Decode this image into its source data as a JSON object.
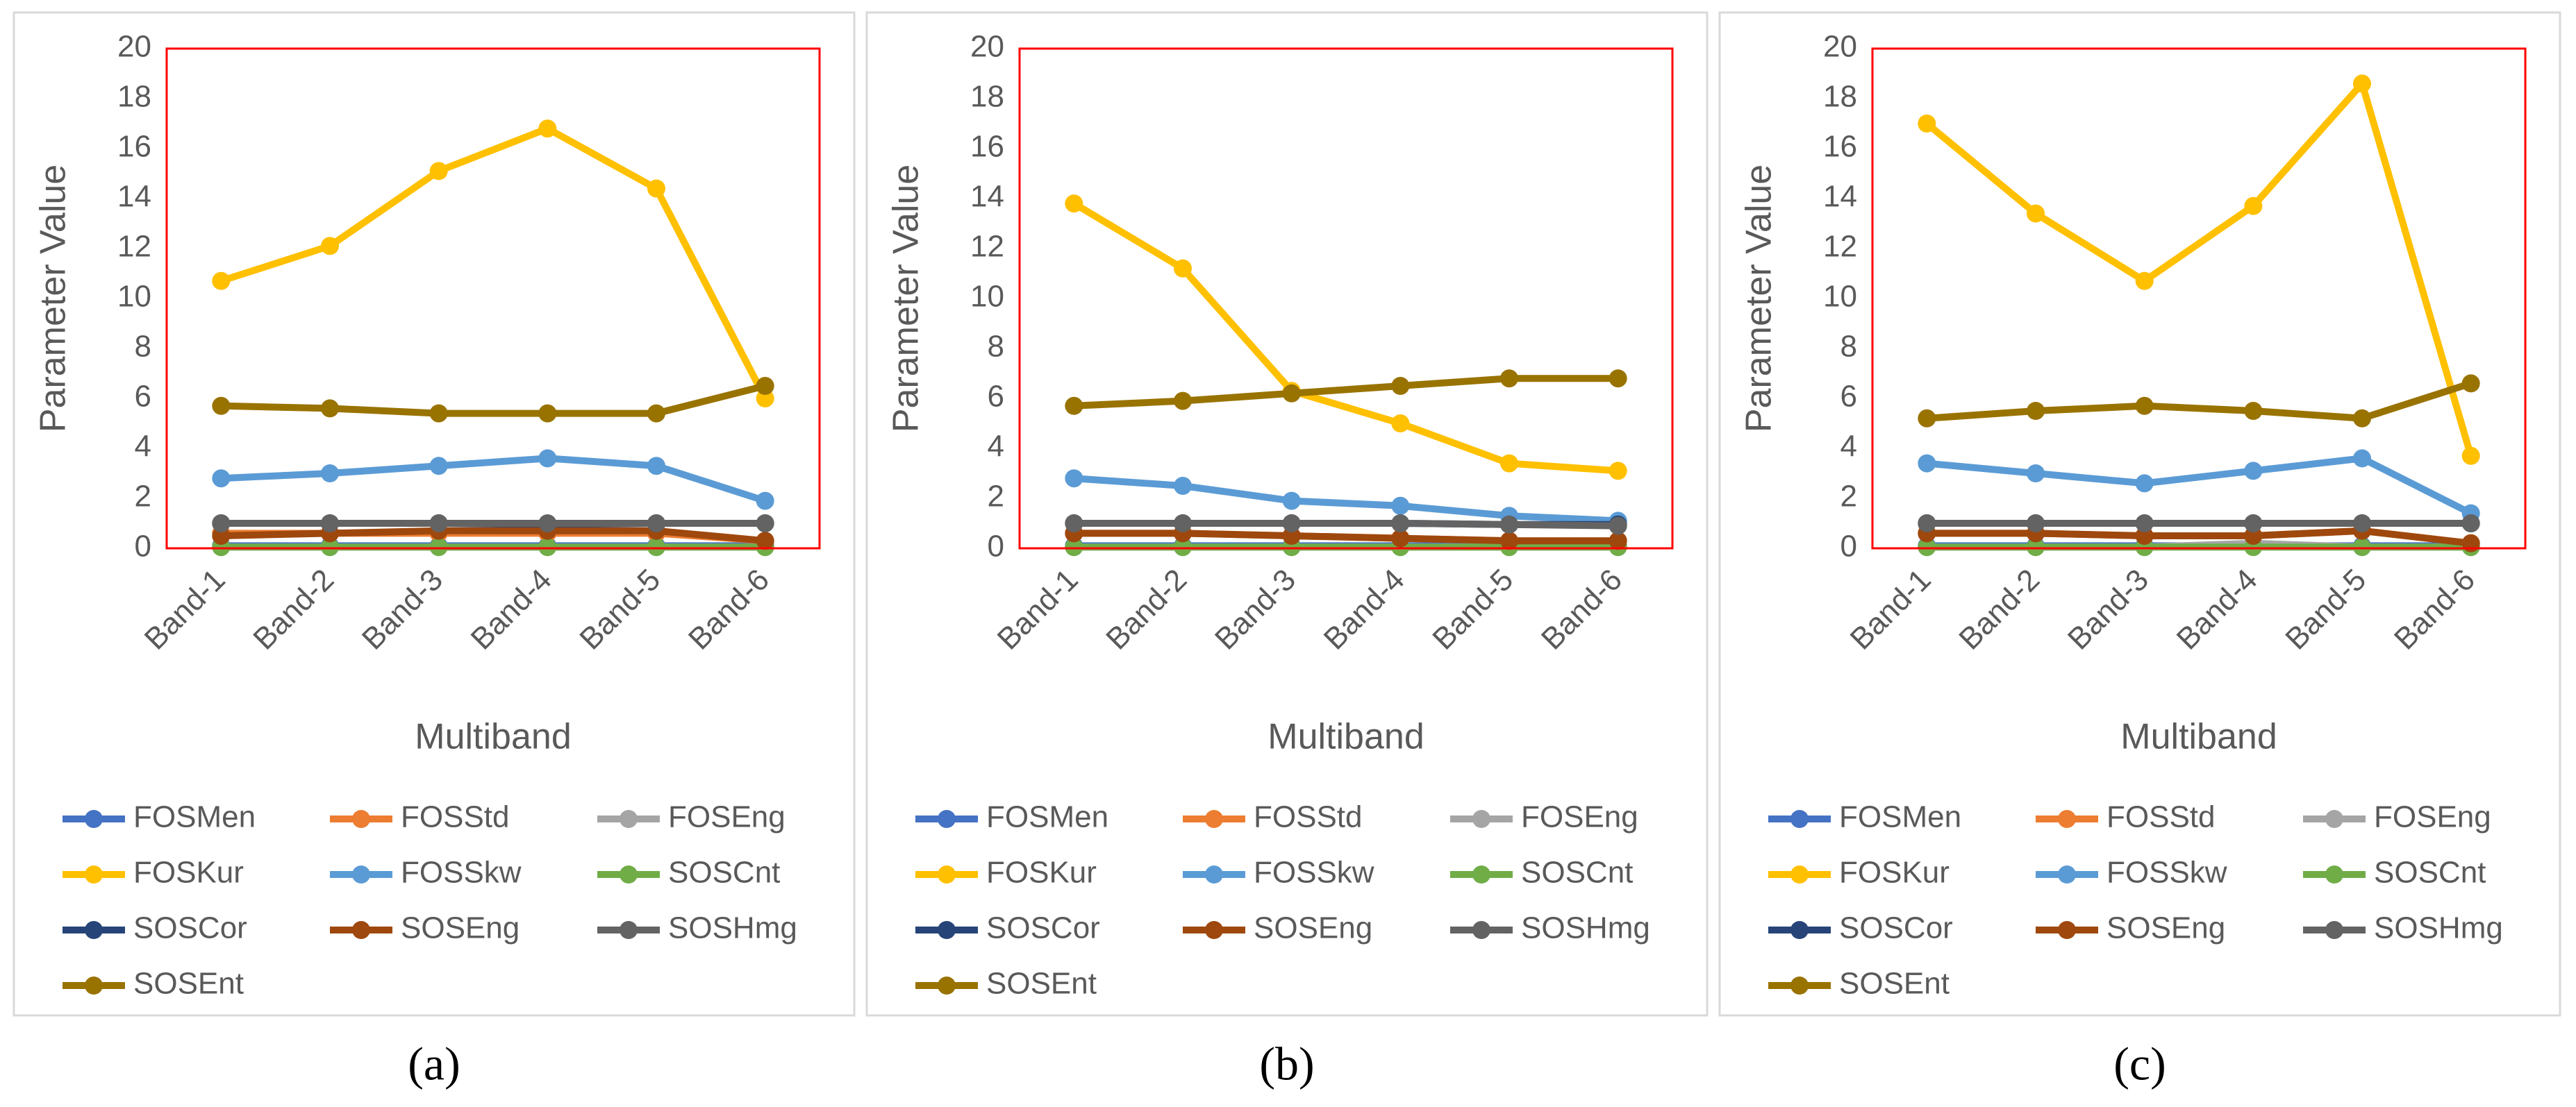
{
  "chart_data": [
    {
      "type": "line",
      "y_label": "Parameter Value",
      "x_label": "Multiband",
      "caption": "(a)",
      "categories": [
        "Band-1",
        "Band-2",
        "Band-3",
        "Band-4",
        "Band-5",
        "Band-6"
      ],
      "ylim": [
        0,
        20
      ],
      "yticks": [
        0,
        2,
        4,
        6,
        8,
        10,
        12,
        14,
        16,
        18,
        20
      ],
      "grid": false,
      "legend": "bottom",
      "series": [
        {
          "name": "FOSMen",
          "color": "#4472c4",
          "values": [
            0.1,
            0.1,
            0.1,
            0.1,
            0.1,
            0.1
          ]
        },
        {
          "name": "FOSStd",
          "color": "#ed7d31",
          "values": [
            0.6,
            0.6,
            0.6,
            0.6,
            0.6,
            0.3
          ]
        },
        {
          "name": "FOSEng",
          "color": "#a5a5a5",
          "values": [
            0.05,
            0.05,
            0.05,
            0.05,
            0.05,
            0.05
          ]
        },
        {
          "name": "FOSKur",
          "color": "#ffc000",
          "values": [
            10.7,
            12.1,
            15.1,
            16.8,
            14.4,
            6.0
          ]
        },
        {
          "name": "FOSSkw",
          "color": "#5b9bd5",
          "values": [
            2.8,
            3.0,
            3.3,
            3.6,
            3.3,
            1.9
          ]
        },
        {
          "name": "SOSCnt",
          "color": "#70ad47",
          "values": [
            0.05,
            0.05,
            0.05,
            0.05,
            0.05,
            0.05
          ]
        },
        {
          "name": "SOSCor",
          "color": "#264478",
          "values": [
            1.0,
            1.0,
            1.0,
            0.95,
            1.0,
            1.0
          ]
        },
        {
          "name": "SOSEng",
          "color": "#9e480e",
          "values": [
            0.5,
            0.6,
            0.7,
            0.7,
            0.7,
            0.3
          ]
        },
        {
          "name": "SOSHmg",
          "color": "#636363",
          "values": [
            1.0,
            1.0,
            1.0,
            1.0,
            1.0,
            1.0
          ]
        },
        {
          "name": "SOSEnt",
          "color": "#997300",
          "values": [
            5.7,
            5.6,
            5.4,
            5.4,
            5.4,
            6.5
          ]
        }
      ]
    },
    {
      "type": "line",
      "y_label": "Parameter Value",
      "x_label": "Multiband",
      "caption": "(b)",
      "categories": [
        "Band-1",
        "Band-2",
        "Band-3",
        "Band-4",
        "Band-5",
        "Band-6"
      ],
      "ylim": [
        0,
        20
      ],
      "yticks": [
        0,
        2,
        4,
        6,
        8,
        10,
        12,
        14,
        16,
        18,
        20
      ],
      "grid": false,
      "legend": "bottom",
      "series": [
        {
          "name": "FOSMen",
          "color": "#4472c4",
          "values": [
            0.1,
            0.1,
            0.1,
            0.1,
            0.1,
            0.1
          ]
        },
        {
          "name": "FOSStd",
          "color": "#ed7d31",
          "values": [
            0.6,
            0.6,
            0.5,
            0.4,
            0.3,
            0.3
          ]
        },
        {
          "name": "FOSEng",
          "color": "#a5a5a5",
          "values": [
            0.05,
            0.05,
            0.05,
            0.05,
            0.05,
            0.05
          ]
        },
        {
          "name": "FOSKur",
          "color": "#ffc000",
          "values": [
            13.8,
            11.2,
            6.3,
            5.0,
            3.4,
            3.1
          ]
        },
        {
          "name": "FOSSkw",
          "color": "#5b9bd5",
          "values": [
            2.8,
            2.5,
            1.9,
            1.7,
            1.3,
            1.1
          ]
        },
        {
          "name": "SOSCnt",
          "color": "#70ad47",
          "values": [
            0.05,
            0.05,
            0.05,
            0.05,
            0.05,
            0.05
          ]
        },
        {
          "name": "SOSCor",
          "color": "#264478",
          "values": [
            1.0,
            1.0,
            1.0,
            1.0,
            0.95,
            0.95
          ]
        },
        {
          "name": "SOSEng",
          "color": "#9e480e",
          "values": [
            0.6,
            0.6,
            0.5,
            0.4,
            0.3,
            0.3
          ]
        },
        {
          "name": "SOSHmg",
          "color": "#636363",
          "values": [
            1.0,
            1.0,
            1.0,
            1.0,
            0.95,
            0.9
          ]
        },
        {
          "name": "SOSEnt",
          "color": "#997300",
          "values": [
            5.7,
            5.9,
            6.2,
            6.5,
            6.8,
            6.8
          ]
        }
      ]
    },
    {
      "type": "line",
      "y_label": "Parameter Value",
      "x_label": "Multiband",
      "caption": "(c)",
      "categories": [
        "Band-1",
        "Band-2",
        "Band-3",
        "Band-4",
        "Band-5",
        "Band-6"
      ],
      "ylim": [
        0,
        20
      ],
      "yticks": [
        0,
        2,
        4,
        6,
        8,
        10,
        12,
        14,
        16,
        18,
        20
      ],
      "grid": false,
      "legend": "bottom",
      "series": [
        {
          "name": "FOSMen",
          "color": "#4472c4",
          "values": [
            0.1,
            0.1,
            0.1,
            0.1,
            0.1,
            0.1
          ]
        },
        {
          "name": "FOSStd",
          "color": "#ed7d31",
          "values": [
            0.6,
            0.6,
            0.5,
            0.5,
            0.7,
            0.2
          ]
        },
        {
          "name": "FOSEng",
          "color": "#a5a5a5",
          "values": [
            0.05,
            0.05,
            0.05,
            0.2,
            0.05,
            0.05
          ]
        },
        {
          "name": "FOSKur",
          "color": "#ffc000",
          "values": [
            17.0,
            13.4,
            10.7,
            13.7,
            18.6,
            3.7
          ]
        },
        {
          "name": "FOSSkw",
          "color": "#5b9bd5",
          "values": [
            3.4,
            3.0,
            2.6,
            3.1,
            3.6,
            1.4
          ]
        },
        {
          "name": "SOSCnt",
          "color": "#70ad47",
          "values": [
            0.05,
            0.05,
            0.05,
            0.05,
            0.05,
            0.05
          ]
        },
        {
          "name": "SOSCor",
          "color": "#264478",
          "values": [
            1.0,
            1.0,
            1.0,
            1.0,
            1.0,
            1.0
          ]
        },
        {
          "name": "SOSEng",
          "color": "#9e480e",
          "values": [
            0.6,
            0.6,
            0.5,
            0.5,
            0.7,
            0.2
          ]
        },
        {
          "name": "SOSHmg",
          "color": "#636363",
          "values": [
            1.0,
            1.0,
            1.0,
            1.0,
            1.0,
            1.0
          ]
        },
        {
          "name": "SOSEnt",
          "color": "#997300",
          "values": [
            5.2,
            5.5,
            5.7,
            5.5,
            5.2,
            6.6
          ]
        }
      ]
    }
  ]
}
